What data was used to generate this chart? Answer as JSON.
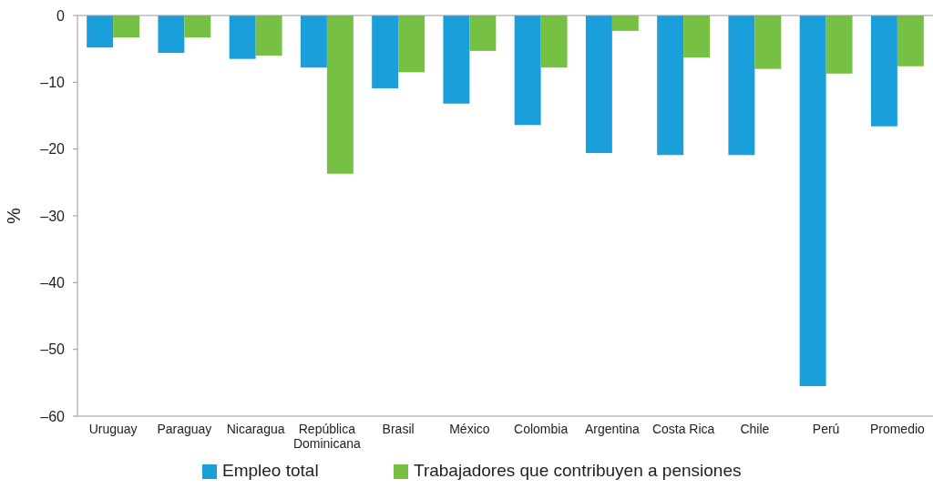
{
  "chart_data": {
    "type": "bar",
    "ylabel": "%",
    "categories": [
      "Uruguay",
      "Paraguay",
      "Nicaragua",
      "República Dominicana",
      "Brasil",
      "México",
      "Colombia",
      "Argentina",
      "Costa Rica",
      "Chile",
      "Perú",
      "Promedio"
    ],
    "series": [
      {
        "name": "Empleo total",
        "color": "#1a9fdb",
        "values": [
          -4.8,
          -5.6,
          -6.5,
          -7.8,
          -10.9,
          -13.2,
          -16.4,
          -20.6,
          -20.9,
          -20.9,
          -55.5,
          -16.6
        ]
      },
      {
        "name": "Trabajadores que contribuyen a pensiones",
        "color": "#76c043",
        "values": [
          -3.3,
          -3.3,
          -6.0,
          -23.7,
          -8.5,
          -5.3,
          -7.8,
          -2.3,
          -6.3,
          -8.0,
          -8.7,
          -7.6
        ]
      }
    ],
    "ylim": [
      -60,
      0
    ],
    "yticks": [
      {
        "value": -60,
        "label": "–60"
      },
      {
        "value": -50,
        "label": "–50"
      },
      {
        "value": -40,
        "label": "–40"
      },
      {
        "value": -30,
        "label": "–30"
      },
      {
        "value": -20,
        "label": "–20"
      },
      {
        "value": -10,
        "label": "–10"
      },
      0
    ],
    "legend": "bottom"
  }
}
